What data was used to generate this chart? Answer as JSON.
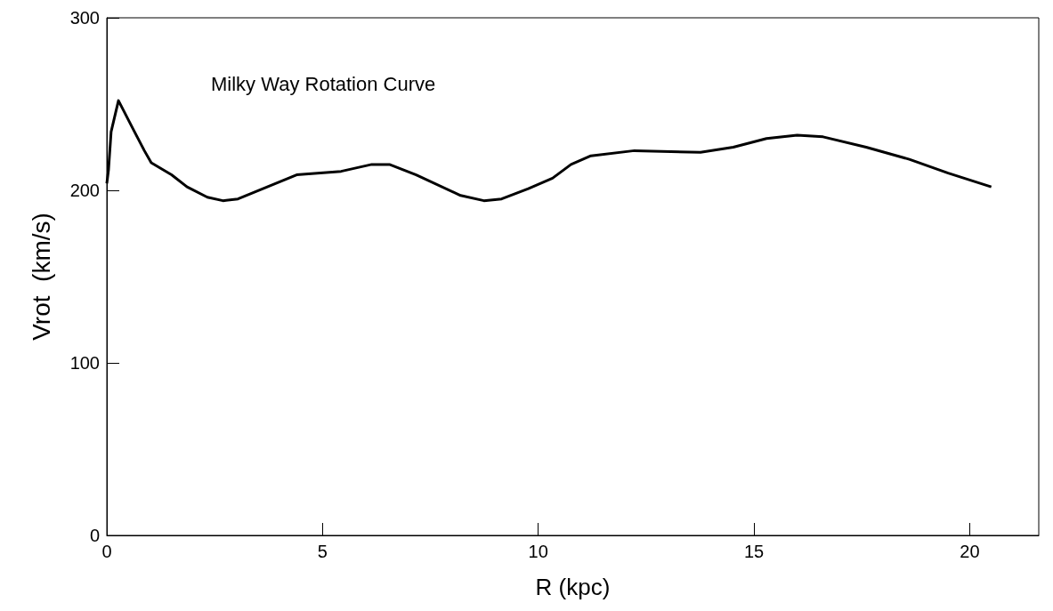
{
  "chart_data": {
    "type": "line",
    "title": "Milky Way Rotation Curve",
    "xlabel": "R (kpc)",
    "ylabel": "Vrot  (km/s)",
    "xlim": [
      0,
      21.6
    ],
    "xticks": [
      0,
      5,
      10,
      15,
      20
    ],
    "ylim": [
      0,
      300
    ],
    "yticks": [
      0,
      100,
      200,
      300
    ],
    "grid": false,
    "marker": "none",
    "line_style": "solid",
    "series": [
      {
        "color": "#000000",
        "x": [
          0,
          0.04,
          0.1,
          0.27,
          0.62,
          0.87,
          1.03,
          1.5,
          1.86,
          2.33,
          2.69,
          3.04,
          3.72,
          4.4,
          5.43,
          6.14,
          6.55,
          7.17,
          8.2,
          8.74,
          9.15,
          9.77,
          10.33,
          10.76,
          11.22,
          12.23,
          13.76,
          14.52,
          15.29,
          16.0,
          16.6,
          17.6,
          18.6,
          19.5,
          20.5
        ],
        "values": [
          204,
          212,
          234,
          252,
          235,
          223,
          216,
          209,
          202,
          196,
          194,
          195,
          202,
          209,
          211,
          215,
          215,
          209,
          197,
          194,
          195,
          201,
          207,
          215,
          220,
          223,
          222,
          225,
          230,
          232,
          231,
          225,
          218,
          210,
          202
        ]
      }
    ]
  }
}
